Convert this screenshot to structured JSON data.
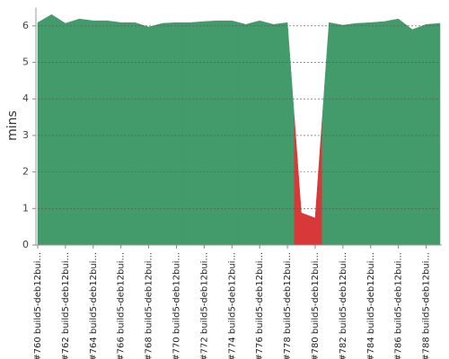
{
  "chart_data": {
    "type": "area",
    "y_label": "mins",
    "categories": [
      "#760 build5-deb12bui...",
      null,
      "#762 build5-deb12bui...",
      null,
      "#764 build5-deb12bui...",
      null,
      "#766 build5-deb12bui...",
      null,
      "#768 build5-deb12bui...",
      null,
      "#770 build5-deb12bui...",
      null,
      "#772 build5-deb12bui...",
      null,
      "#774 build5-deb12bui...",
      null,
      "#776 build5-deb12bui...",
      null,
      "#778 build5-deb12bui...",
      null,
      "#780 build5-deb12bui...",
      null,
      "#782 build5-deb12bui...",
      null,
      "#784 build5-deb12bui...",
      null,
      "#786 build5-deb12bui...",
      null,
      "#788 build5-deb12bui...",
      null
    ],
    "values": [
      6.09,
      6.31,
      6.07,
      6.19,
      6.14,
      6.14,
      6.09,
      6.09,
      5.97,
      6.07,
      6.09,
      6.09,
      6.12,
      6.14,
      6.14,
      6.04,
      6.14,
      6.04,
      6.09,
      0.88,
      0.74,
      6.09,
      6.02,
      6.07,
      6.09,
      6.12,
      6.19,
      5.9,
      6.04,
      6.07
    ],
    "point_colors": [
      "#439a6b",
      "#439a6b",
      "#439a6b",
      "#439a6b",
      "#439a6b",
      "#439a6b",
      "#439a6b",
      "#439a6b",
      "#439a6b",
      "#439a6b",
      "#439a6b",
      "#439a6b",
      "#439a6b",
      "#439a6b",
      "#439a6b",
      "#439a6b",
      "#439a6b",
      "#439a6b",
      "#439a6b",
      "#d83838",
      "#d83838",
      "#439a6b",
      "#439a6b",
      "#439a6b",
      "#439a6b",
      "#439a6b",
      "#439a6b",
      "#439a6b",
      "#439a6b",
      "#439a6b"
    ],
    "ylim": [
      0,
      6.5
    ],
    "yticks": [
      0,
      1,
      2,
      3,
      4,
      5,
      6
    ],
    "grid": true
  }
}
